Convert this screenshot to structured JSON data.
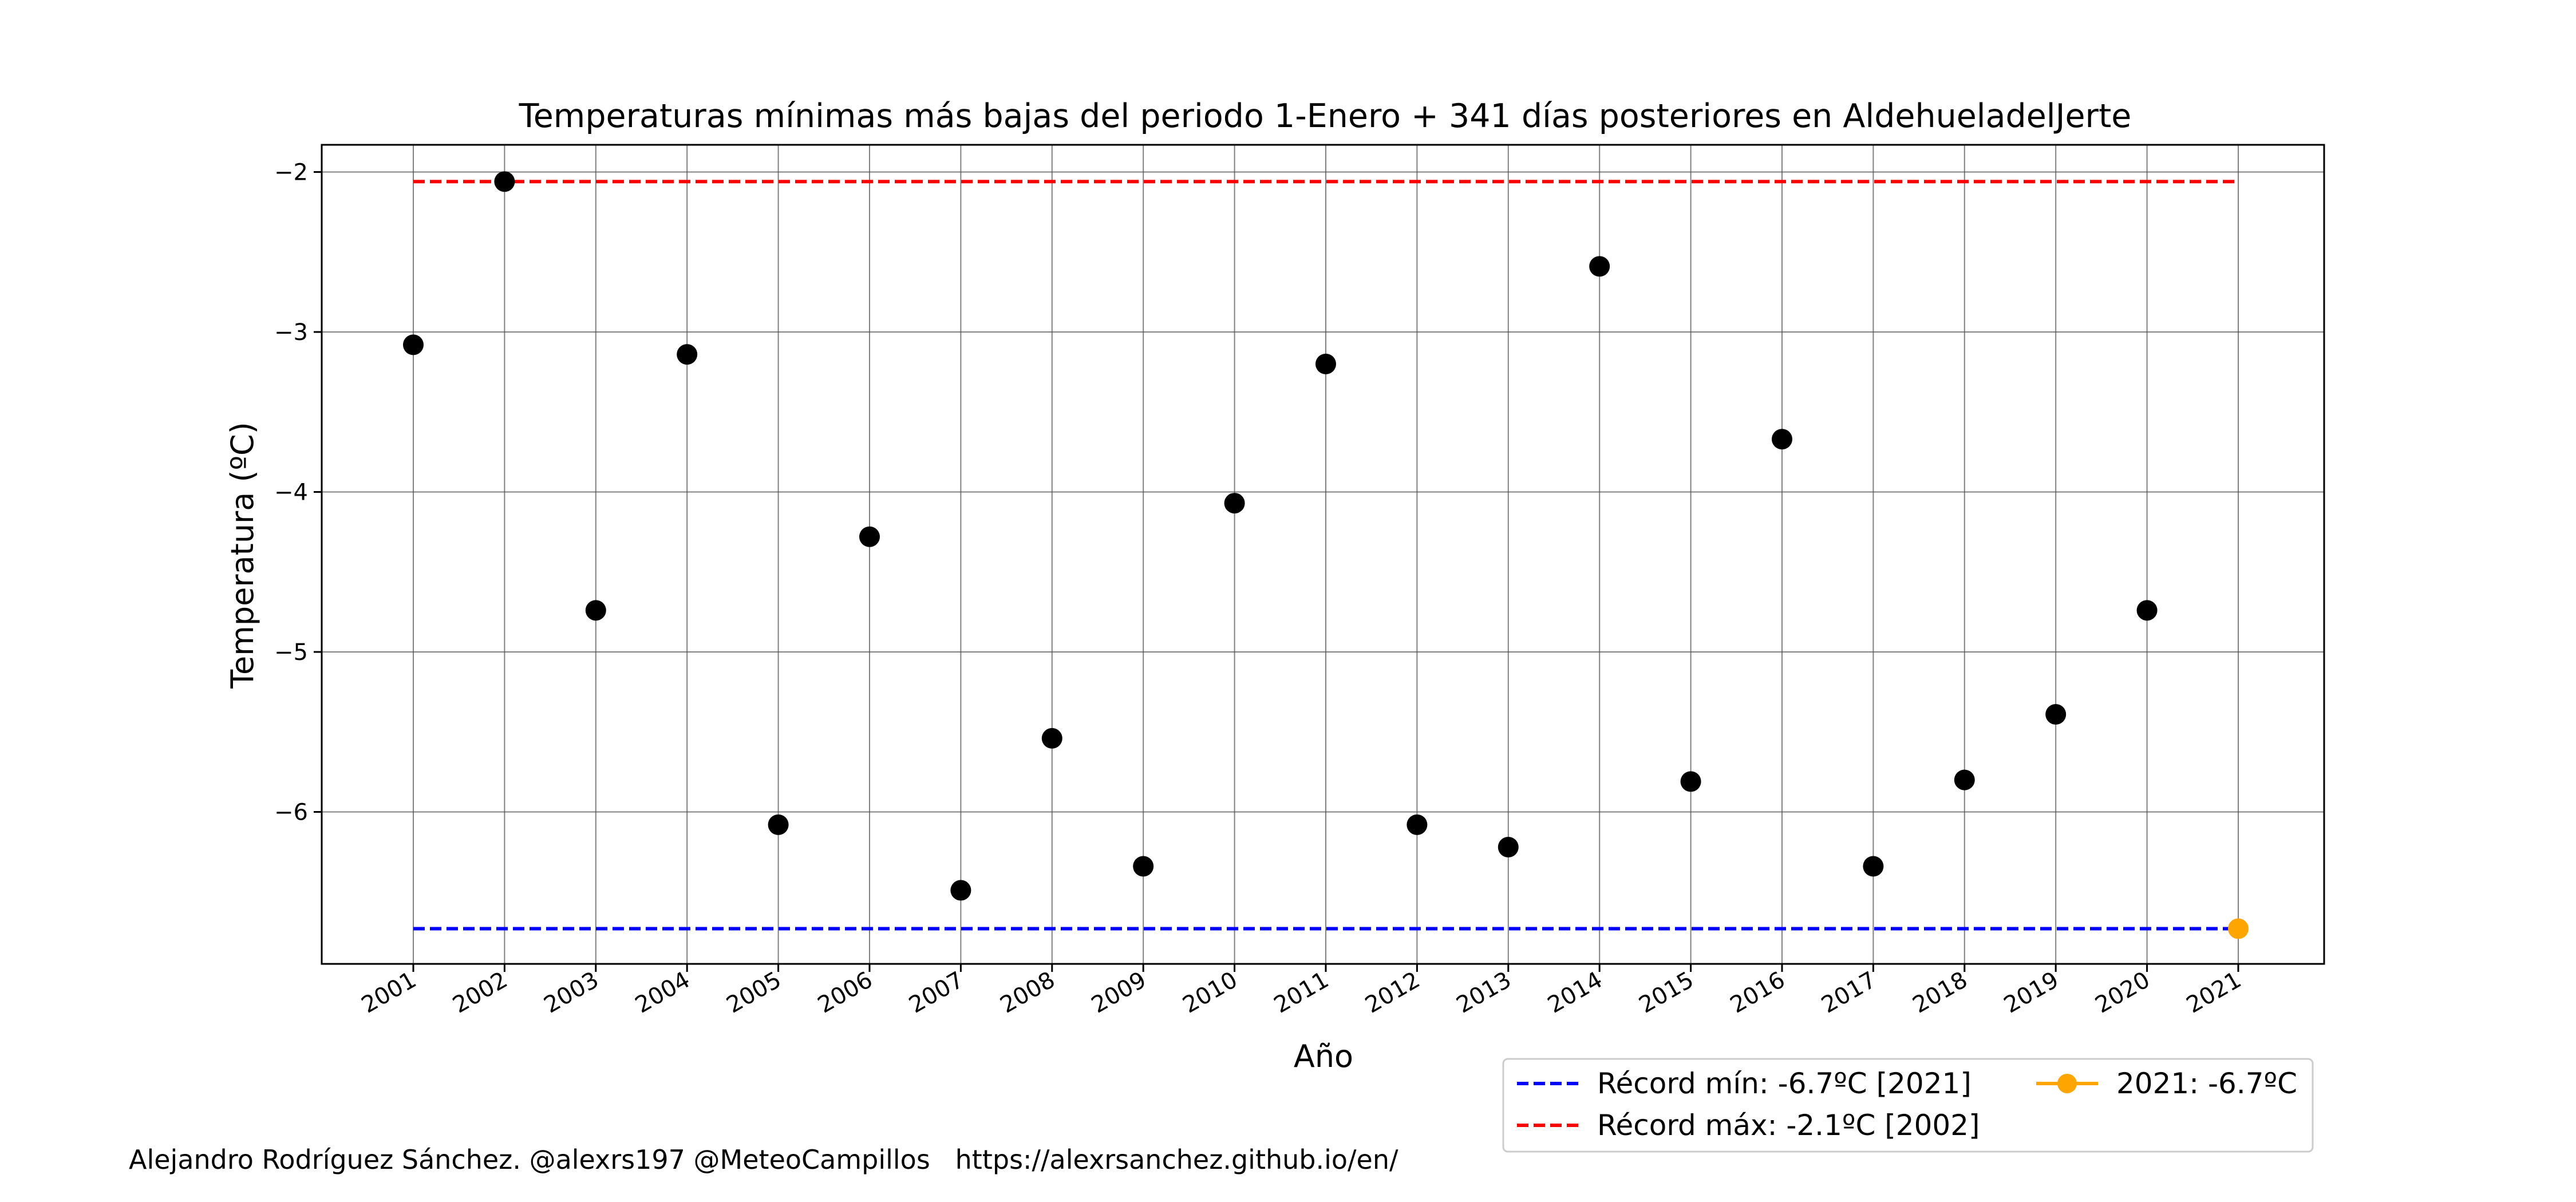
{
  "chart_data": {
    "type": "scatter",
    "title": "Temperaturas mínimas más bajas del periodo 1-Enero + 341 días posteriores en AldehueladelJerte",
    "xlabel": "Año",
    "ylabel": "Temperatura (ºC)",
    "categories": [
      "2001",
      "2002",
      "2003",
      "2004",
      "2005",
      "2006",
      "2007",
      "2008",
      "2009",
      "2010",
      "2011",
      "2012",
      "2013",
      "2014",
      "2015",
      "2016",
      "2017",
      "2018",
      "2019",
      "2020",
      "2021"
    ],
    "ylim": [
      -6.95,
      -1.83
    ],
    "yticks": [
      -2,
      -3,
      -4,
      -5,
      -6
    ],
    "ytick_labels": [
      "−2",
      "−3",
      "−4",
      "−5",
      "−6"
    ],
    "grid": true,
    "series": [
      {
        "values": [
          -3.08,
          -2.06,
          -4.74,
          -3.14,
          -6.08,
          -4.28,
          -6.49,
          -5.54,
          -6.34,
          -4.07,
          -3.2,
          -6.08,
          -6.22,
          -2.59,
          -5.81,
          -3.67,
          -6.34,
          -5.8,
          -5.39,
          -4.74
        ],
        "color": "#000000"
      }
    ],
    "highlight": {
      "x": "2021",
      "y": -6.73,
      "color": "#ffa500"
    },
    "reference_lines": [
      {
        "y": -6.73,
        "color": "#0000ff",
        "style": "dashed"
      },
      {
        "y": -2.06,
        "color": "#ff0000",
        "style": "dashed"
      }
    ],
    "legend": {
      "position": "bottom-right",
      "items": [
        {
          "label": "Récord mín: -6.7ºC [2021]",
          "color": "#0000ff",
          "kind": "dashed-line"
        },
        {
          "label": "Récord máx: -2.1ºC [2002]",
          "color": "#ff0000",
          "kind": "dashed-line"
        },
        {
          "label": "2021: -6.7ºC",
          "color": "#ffa500",
          "kind": "line-marker"
        }
      ]
    }
  },
  "footer": {
    "credit": "Alejandro Rodríguez Sánchez. @alexrs197 @MeteoCampillos   https://alexrsanchez.github.io/en/"
  }
}
